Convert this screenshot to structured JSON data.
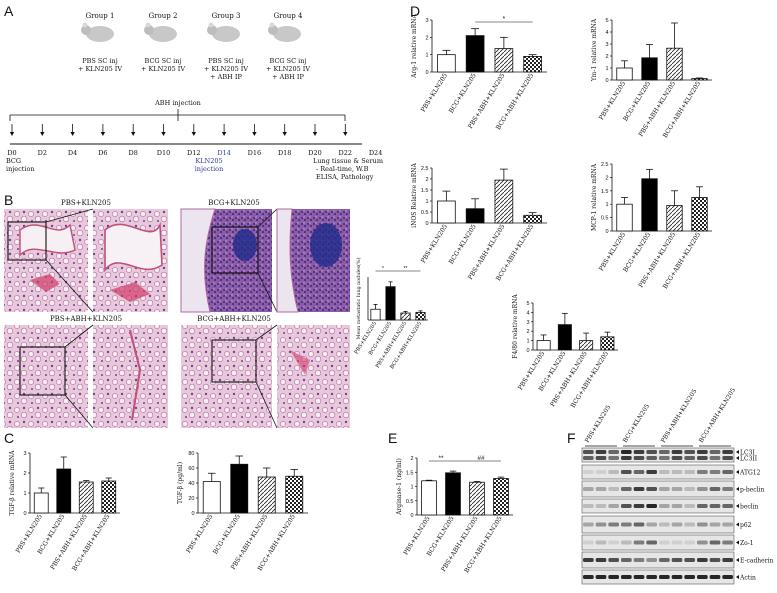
{
  "panels": {
    "A": "A",
    "B": "B",
    "C": "C",
    "D": "D",
    "E": "E",
    "F": "F"
  },
  "panel_a": {
    "groups": [
      {
        "title": "Group 1",
        "lines": [
          "PBS SC inj",
          "+ KLN205 IV"
        ]
      },
      {
        "title": "Group 2",
        "lines": [
          "BCG SC inj",
          "+ KLN205 IV"
        ]
      },
      {
        "title": "Group 3",
        "lines": [
          "PBS SC inj",
          "+ KLN205 IV",
          "+ ABH IP"
        ]
      },
      {
        "title": "Group 4",
        "lines": [
          "BCG SC inj",
          "+ KLN205 IV",
          "+ ABH IP"
        ]
      }
    ],
    "abh_label": "ABH injection",
    "days": [
      "D0",
      "D2",
      "D4",
      "D6",
      "D8",
      "D10",
      "D12",
      "D14",
      "D16",
      "D18",
      "D20",
      "D22",
      "D24"
    ],
    "d0_sub": [
      "BCG",
      "injection"
    ],
    "d14_sub": [
      "KLN205",
      "injection"
    ],
    "end_notes": [
      "Lung tissue & Serum",
      "- Real-time, W.B",
      "ELISA, Pathology"
    ]
  },
  "panel_b": {
    "labels": [
      "PBS+KLN205",
      "BCG+KLN205",
      "PBS+ABH+KLN205",
      "BCG+ABH+KLN205"
    ],
    "ylabel": "Mean metastatic lung nodules(%)",
    "sig": [
      "*",
      "**"
    ]
  },
  "groups": [
    "PBS+KLN205",
    "BCG+KLN205",
    "PBS+ABH+KLN205",
    "BCG+ABH+KLN205"
  ],
  "chart_data": [
    {
      "id": "B",
      "type": "bar",
      "ylabel": "Mean metastatic lung nodules(%)",
      "ylim": [
        0,
        80
      ],
      "values": [
        20,
        62,
        13,
        14
      ],
      "errors": [
        9,
        9,
        3,
        3
      ]
    },
    {
      "id": "C1",
      "type": "bar",
      "ylabel": "TGF-β relative mRNA",
      "ylim": [
        0,
        3
      ],
      "ticks": [
        0,
        1,
        2,
        3
      ],
      "values": [
        1.0,
        2.2,
        1.55,
        1.6
      ],
      "errors": [
        0.25,
        0.6,
        0.07,
        0.15
      ]
    },
    {
      "id": "C2",
      "type": "bar",
      "ylabel": "TGF-β (pg/ml)",
      "ylim": [
        0,
        80
      ],
      "ticks": [
        0,
        20,
        40,
        60,
        80
      ],
      "values": [
        42,
        65,
        48,
        49
      ],
      "errors": [
        11,
        11,
        12,
        9
      ]
    },
    {
      "id": "D1",
      "type": "bar",
      "ylabel": "Arg-1 relative mRNA",
      "ylim": [
        0,
        3
      ],
      "ticks": [
        0,
        1,
        2,
        3
      ],
      "values": [
        1.0,
        2.1,
        1.35,
        0.9
      ],
      "errors": [
        0.25,
        0.4,
        0.65,
        0.1
      ],
      "sig": "*"
    },
    {
      "id": "D2",
      "type": "bar",
      "ylabel": "Ym-1 relative mRNA",
      "ylim": [
        0,
        5
      ],
      "ticks": [
        0,
        1,
        2,
        3,
        4,
        5
      ],
      "values": [
        1.0,
        1.85,
        2.65,
        0.12
      ],
      "errors": [
        0.6,
        1.1,
        2.1,
        0.05
      ]
    },
    {
      "id": "D3",
      "type": "bar",
      "ylabel": "iNOS Relative mRNA",
      "ylim": [
        0,
        2.5
      ],
      "ticks": [
        0,
        0.5,
        1,
        1.5,
        2,
        2.5
      ],
      "values": [
        1.0,
        0.65,
        1.95,
        0.35
      ],
      "errors": [
        0.45,
        0.45,
        0.5,
        0.12
      ]
    },
    {
      "id": "D4",
      "type": "bar",
      "ylabel": "MCP-1 relative mRNA",
      "ylim": [
        0,
        2.5
      ],
      "ticks": [
        0,
        0.5,
        1,
        1.5,
        2,
        2.5
      ],
      "values": [
        1.0,
        1.95,
        0.95,
        1.25
      ],
      "errors": [
        0.25,
        0.35,
        0.55,
        0.4
      ]
    },
    {
      "id": "D5",
      "type": "bar",
      "ylabel": "F4/80 relative mRNA",
      "ylim": [
        0,
        5
      ],
      "ticks": [
        0,
        1,
        2,
        3,
        4,
        5
      ],
      "values": [
        1.0,
        2.7,
        1.0,
        1.4
      ],
      "errors": [
        0.6,
        1.2,
        0.8,
        0.5
      ]
    },
    {
      "id": "E",
      "type": "bar",
      "ylabel": "Arginase-1 (ng/ml)",
      "ylim": [
        0,
        2
      ],
      "ticks": [
        0,
        0.5,
        1,
        1.5,
        2
      ],
      "values": [
        1.2,
        1.48,
        1.15,
        1.28
      ],
      "errors": [
        0.02,
        0.06,
        0.03,
        0.05
      ],
      "sig": [
        "**",
        "##"
      ]
    }
  ],
  "panel_f": {
    "columns": [
      "PBS+KLN205",
      "BCG+KLN205",
      "PBS+ABH+KLN205",
      "BCG+ABH+KLN205"
    ],
    "bands": [
      "LC3I",
      "LC3II",
      "ATG12",
      "p-beclin",
      "beclin",
      "p62",
      "Zo-1",
      "E-cadherin",
      "Actin"
    ]
  }
}
